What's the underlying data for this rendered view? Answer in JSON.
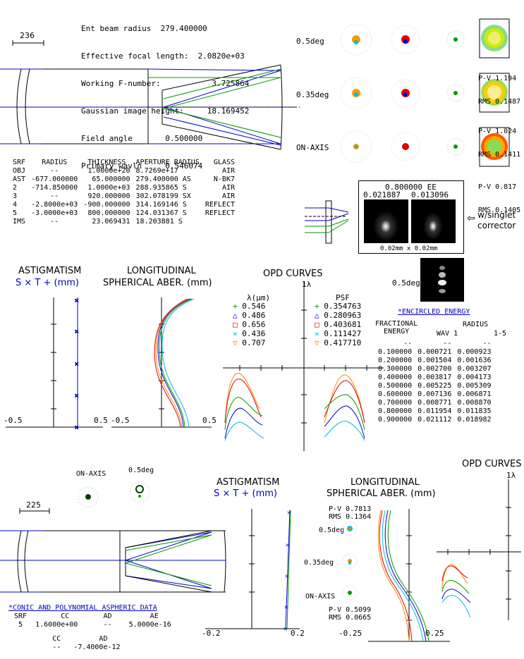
{
  "specs": {
    "lines": [
      "Ent beam radius  279.400000",
      "Effective focal length:  2.0820e+03",
      "Working F-number:           3.725864",
      "Gaussian image height:     18.169452",
      "Field angle       0.500000",
      "Primary wavln     0.546074"
    ]
  },
  "scale_top": "236",
  "scale_bottom": "225",
  "field_labels": [
    "0.5deg",
    "0.35deg",
    "ON-AXIS"
  ],
  "wavefront_maps": [
    {
      "pv": "P-V 1.194",
      "rms": "RMS 0.1487"
    },
    {
      "pv": "P-V 1.024",
      "rms": "RMS 0.1411"
    },
    {
      "pv": "P-V 0.817",
      "rms": "RMS 0.1405"
    }
  ],
  "surface_table": {
    "headers": [
      "SRF",
      "RADIUS",
      "THICKNESS",
      "APERTURE RADIUS",
      "GLASS"
    ],
    "rows": [
      [
        "OBJ",
        "--",
        "1.0000e+20",
        "8.7269e+17",
        "AIR"
      ],
      [
        "AST",
        "-677.000000",
        "65.000000",
        "279.400000 AS",
        "N-BK7"
      ],
      [
        "2",
        "-714.850000",
        "1.0000e+03",
        "288.935865 S",
        "AIR"
      ],
      [
        "3",
        "--",
        "920.000000",
        "302.078199 SX",
        "AIR"
      ],
      [
        "4",
        "-2.8000e+03",
        "-900.000000",
        "314.169146 S",
        "REFLECT"
      ],
      [
        "5",
        "-3.0000e+03",
        "800.000000",
        "124.031367 S",
        "REFLECT"
      ],
      [
        "IMS",
        "--",
        "23.069431",
        "18.203881 S",
        ""
      ]
    ]
  },
  "psf_box": {
    "ee": "0.800000 EE",
    "v1": "0.021887",
    "v2": "0.013096",
    "size": "0.02mm x 0.02mm"
  },
  "corrector_label": "w/singlet\ncorrector",
  "psf_small_label": "0.5deg",
  "astig_top": {
    "title": "ASTIGMATISM",
    "subtitle": "S × T + (mm)",
    "xmin": "-0.5",
    "xmax": "0.5"
  },
  "longsph_top": {
    "title": "LONGITUDINAL",
    "subtitle": "SPHERICAL ABER. (mm)",
    "xmin": "-0.5",
    "xmax": "0.5"
  },
  "opd_top": {
    "title": "OPD CURVES",
    "scale": "1λ",
    "lambda_header": "λ(μm)",
    "psf_header": "PSF",
    "wavelengths": [
      "0.546",
      "0.486",
      "0.656",
      "0.436",
      "0.707"
    ],
    "psf_values": [
      "0.354763",
      "0.280963",
      "0.403681",
      "0.111427",
      "0.417710"
    ],
    "colors": [
      "#009900",
      "#0000cc",
      "#dd0000",
      "#00bbdd",
      "#ff8800"
    ]
  },
  "encircled": {
    "title": "*ENCIRCLED ENERGY",
    "col1": "FRACTIONAL\nENERGY",
    "col2": "RADIUS",
    "col2a": "WAV 1",
    "col2b": "1-5",
    "rows": [
      [
        "0.100000",
        "0.000721",
        "0.000923"
      ],
      [
        "0.200000",
        "0.001504",
        "0.001636"
      ],
      [
        "0.300000",
        "0.002700",
        "0.003207"
      ],
      [
        "0.400000",
        "0.003817",
        "0.004173"
      ],
      [
        "0.500000",
        "0.005225",
        "0.005309"
      ],
      [
        "0.600000",
        "0.007136",
        "0.006871"
      ],
      [
        "0.700000",
        "0.008771",
        "0.008870"
      ],
      [
        "0.800000",
        "0.011954",
        "0.011835"
      ],
      [
        "0.900000",
        "0.021112",
        "0.018982"
      ]
    ]
  },
  "bottom_spots": {
    "a": "ON-AXIS",
    "b": "0.5deg"
  },
  "astig_bottom": {
    "title": "ASTIGMATISM",
    "subtitle": "S × T + (mm)",
    "xmin": "-0.2",
    "xmax": "0.2"
  },
  "longsph_bottom": {
    "title": "LONGITUDINAL",
    "subtitle": "SPHERICAL ABER. (mm)",
    "xmin": "-0.25",
    "xmax": "0.25",
    "pv1": "P-V 0.7813",
    "rms1": "RMS 0.1364",
    "pv2": "P-V 0.5099",
    "rms2": "RMS 0.0665"
  },
  "opd_bottom": {
    "title": "OPD CURVES",
    "scale": "1λ"
  },
  "bottom_fields": [
    "0.5deg",
    "0.35deg",
    "ON-AXIS"
  ],
  "aspheric": {
    "title": "*CONIC AND POLYNOMIAL ASPHERIC DATA",
    "line1": " SRF        CC        AD         AE",
    "line2": "  5   1.6000e+00      --    5.0000e-16",
    "line3": "          CC         AD",
    "line4": "          --   -7.4000e-12"
  }
}
